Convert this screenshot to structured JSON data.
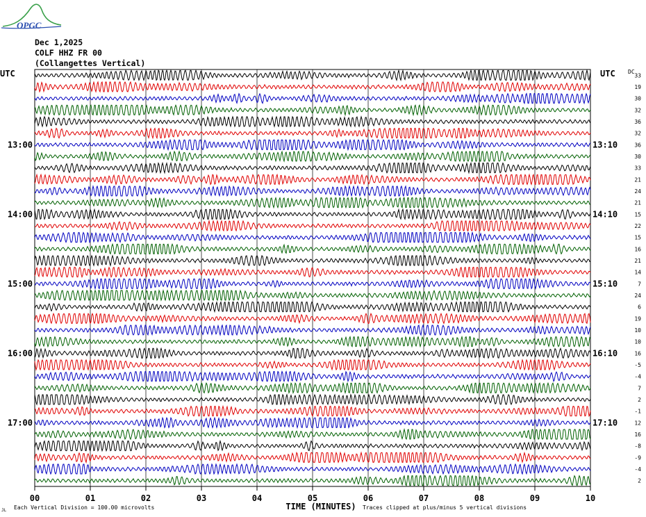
{
  "logo_text": "OPGC",
  "header": {
    "date": "Dec 1,2025",
    "station": "COLF HHZ FR 00",
    "location": "(Collangettes Vertical)"
  },
  "chart_data": {
    "type": "line",
    "left_axis_label": "UTC",
    "right_axis_label": "UTC",
    "dc_label": "DC",
    "xlabel": "TIME (MINUTES)",
    "x_ticks": [
      "00",
      "01",
      "02",
      "03",
      "04",
      "05",
      "06",
      "07",
      "08",
      "09",
      "10"
    ],
    "xlim": [
      0,
      10
    ],
    "left_time_labels": [
      {
        "row": 6,
        "text": "13:00"
      },
      {
        "row": 12,
        "text": "14:00"
      },
      {
        "row": 18,
        "text": "15:00"
      },
      {
        "row": 24,
        "text": "16:00"
      },
      {
        "row": 30,
        "text": "17:00"
      }
    ],
    "right_time_labels": [
      {
        "row": 6,
        "text": "13:10"
      },
      {
        "row": 12,
        "text": "14:10"
      },
      {
        "row": 18,
        "text": "15:10"
      },
      {
        "row": 24,
        "text": "16:10"
      },
      {
        "row": 30,
        "text": "17:10"
      }
    ],
    "dc_offsets": [
      "33",
      "19",
      "30",
      "32",
      "36",
      "32",
      "36",
      "30",
      "33",
      "21",
      "24",
      "21",
      "15",
      "22",
      "15",
      "16",
      "21",
      "14",
      "7",
      "24",
      "6",
      "19",
      "10",
      "10",
      "16",
      "-5",
      "-4",
      "7",
      "2",
      "-1",
      "12",
      "16",
      "-8",
      "-9",
      "-4",
      "2"
    ],
    "trace_colors": [
      "#000000",
      "#e00000",
      "#0000c0",
      "#006000"
    ],
    "grid": true,
    "footer_left": "Each Vertical Division =  100.00 microvolts",
    "footer_right": "Traces clipped at plus/minus 5 vertical divisions",
    "corner_mark": "JL"
  }
}
